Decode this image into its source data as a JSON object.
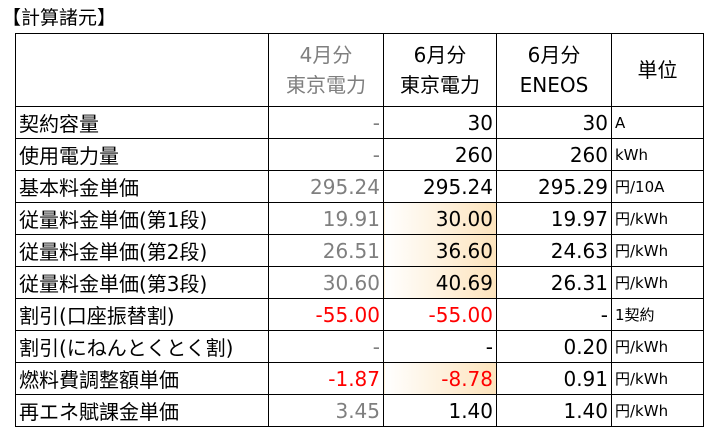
{
  "title": "【計算諸元】",
  "table": {
    "header": [
      [
        "4月分",
        "東京電力"
      ],
      [
        "6月分",
        "東京電力"
      ],
      [
        "6月分",
        "ENEOS"
      ],
      [
        "単位"
      ]
    ],
    "rows": [
      [
        "契約容量",
        "-",
        "30",
        "30",
        "A"
      ],
      [
        "使用電力量",
        "-",
        "260",
        "260",
        "kWh"
      ],
      [
        "基本料金単価",
        "295.24",
        "295.24",
        "295.29",
        "円/10A"
      ],
      [
        "従量料金単価(第1段)",
        "19.91",
        "30.00",
        "19.97",
        "円/kWh"
      ],
      [
        "従量料金単価(第2段)",
        "26.51",
        "36.60",
        "24.63",
        "円/kWh"
      ],
      [
        "従量料金単価(第3段)",
        "30.60",
        "40.69",
        "26.31",
        "円/kWh"
      ],
      [
        "割引(口座振替割)",
        "-55.00",
        "-55.00",
        "-",
        "1契約"
      ],
      [
        "割引(にねんとくとく割)",
        "-",
        "-",
        "0.20",
        "円/kWh"
      ],
      [
        "燃料費調整額単価",
        "-1.87",
        "-8.78",
        "0.91",
        "円/kWh"
      ],
      [
        "再エネ賦課金単価",
        "3.45",
        "1.40",
        "1.40",
        "円/kWh"
      ]
    ]
  }
}
